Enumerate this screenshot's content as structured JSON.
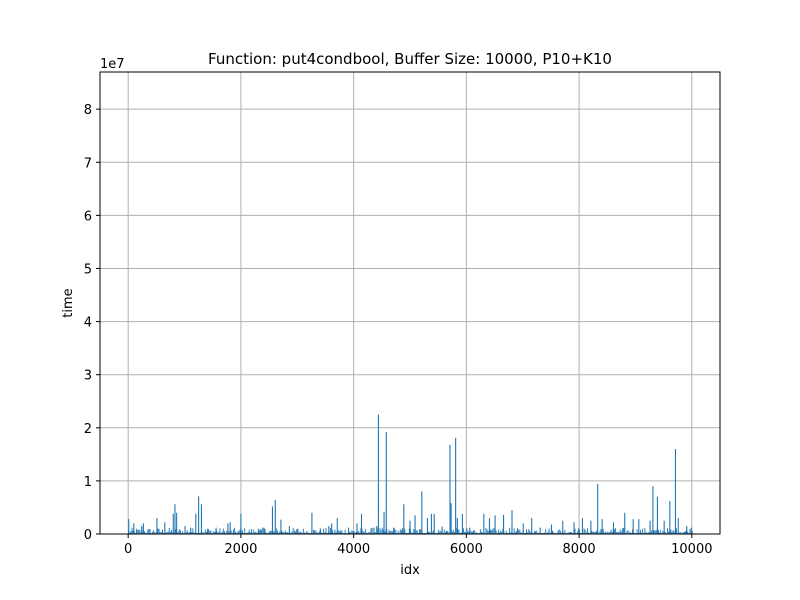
{
  "chart_data": {
    "type": "bar",
    "title": "Function: put4condbool, Buffer Size: 10000, P10+K10",
    "xlabel": "idx",
    "ylabel": "time",
    "y_offset_label": "1e7",
    "xlim": [
      -500,
      10500
    ],
    "ylim": [
      0,
      8.7
    ],
    "y_scale_multiplier": 10000000,
    "xticks": [
      0,
      2000,
      4000,
      6000,
      8000,
      10000
    ],
    "xtick_labels": [
      "0",
      "2000",
      "4000",
      "6000",
      "8000",
      "10000"
    ],
    "yticks": [
      0,
      1,
      2,
      3,
      4,
      5,
      6,
      7,
      8
    ],
    "ytick_labels": [
      "0",
      "1",
      "2",
      "3",
      "4",
      "5",
      "6",
      "7",
      "8"
    ],
    "grid": true,
    "bar_color": "#1f77b4",
    "baseline_noise_max": 0.12,
    "spikes": [
      {
        "x": 0,
        "y": 0.28
      },
      {
        "x": 90,
        "y": 0.2
      },
      {
        "x": 230,
        "y": 0.15
      },
      {
        "x": 260,
        "y": 0.2
      },
      {
        "x": 500,
        "y": 0.3
      },
      {
        "x": 640,
        "y": 0.22
      },
      {
        "x": 790,
        "y": 0.38
      },
      {
        "x": 820,
        "y": 0.56
      },
      {
        "x": 850,
        "y": 0.4
      },
      {
        "x": 1000,
        "y": 0.15
      },
      {
        "x": 1100,
        "y": 0.12
      },
      {
        "x": 1190,
        "y": 0.38
      },
      {
        "x": 1240,
        "y": 0.71
      },
      {
        "x": 1290,
        "y": 0.56
      },
      {
        "x": 1400,
        "y": 0.1
      },
      {
        "x": 1550,
        "y": 0.12
      },
      {
        "x": 1760,
        "y": 0.2
      },
      {
        "x": 1800,
        "y": 0.22
      },
      {
        "x": 1990,
        "y": 0.38
      },
      {
        "x": 2300,
        "y": 0.1
      },
      {
        "x": 2400,
        "y": 0.12
      },
      {
        "x": 2550,
        "y": 0.52
      },
      {
        "x": 2600,
        "y": 0.64
      },
      {
        "x": 2700,
        "y": 0.27
      },
      {
        "x": 2850,
        "y": 0.15
      },
      {
        "x": 3000,
        "y": 0.1
      },
      {
        "x": 3250,
        "y": 0.4
      },
      {
        "x": 3400,
        "y": 0.1
      },
      {
        "x": 3550,
        "y": 0.15
      },
      {
        "x": 3600,
        "y": 0.2
      },
      {
        "x": 3700,
        "y": 0.3
      },
      {
        "x": 3900,
        "y": 0.12
      },
      {
        "x": 4050,
        "y": 0.2
      },
      {
        "x": 4130,
        "y": 0.38
      },
      {
        "x": 4350,
        "y": 0.12
      },
      {
        "x": 4400,
        "y": 0.15
      },
      {
        "x": 4430,
        "y": 2.25
      },
      {
        "x": 4530,
        "y": 0.42
      },
      {
        "x": 4570,
        "y": 1.92
      },
      {
        "x": 4700,
        "y": 0.12
      },
      {
        "x": 4880,
        "y": 0.56
      },
      {
        "x": 4990,
        "y": 0.25
      },
      {
        "x": 5080,
        "y": 0.35
      },
      {
        "x": 5200,
        "y": 0.8
      },
      {
        "x": 5300,
        "y": 0.3
      },
      {
        "x": 5370,
        "y": 0.38
      },
      {
        "x": 5420,
        "y": 0.38
      },
      {
        "x": 5560,
        "y": 0.14
      },
      {
        "x": 5700,
        "y": 1.68
      },
      {
        "x": 5720,
        "y": 0.58
      },
      {
        "x": 5800,
        "y": 1.81
      },
      {
        "x": 5830,
        "y": 0.3
      },
      {
        "x": 5920,
        "y": 0.38
      },
      {
        "x": 6050,
        "y": 0.12
      },
      {
        "x": 6300,
        "y": 0.38
      },
      {
        "x": 6400,
        "y": 0.3
      },
      {
        "x": 6500,
        "y": 0.35
      },
      {
        "x": 6650,
        "y": 0.36
      },
      {
        "x": 6800,
        "y": 0.45
      },
      {
        "x": 7000,
        "y": 0.2
      },
      {
        "x": 7150,
        "y": 0.3
      },
      {
        "x": 7300,
        "y": 0.12
      },
      {
        "x": 7500,
        "y": 0.18
      },
      {
        "x": 7700,
        "y": 0.25
      },
      {
        "x": 7900,
        "y": 0.22
      },
      {
        "x": 8050,
        "y": 0.3
      },
      {
        "x": 8200,
        "y": 0.25
      },
      {
        "x": 8320,
        "y": 0.94
      },
      {
        "x": 8400,
        "y": 0.28
      },
      {
        "x": 8600,
        "y": 0.22
      },
      {
        "x": 8800,
        "y": 0.4
      },
      {
        "x": 8950,
        "y": 0.28
      },
      {
        "x": 9050,
        "y": 0.28
      },
      {
        "x": 9250,
        "y": 0.25
      },
      {
        "x": 9300,
        "y": 0.9
      },
      {
        "x": 9380,
        "y": 0.7
      },
      {
        "x": 9500,
        "y": 0.25
      },
      {
        "x": 9600,
        "y": 0.62
      },
      {
        "x": 9700,
        "y": 1.6
      },
      {
        "x": 9750,
        "y": 0.3
      },
      {
        "x": 9900,
        "y": 0.15
      },
      {
        "x": 9980,
        "y": 0.12
      }
    ]
  }
}
